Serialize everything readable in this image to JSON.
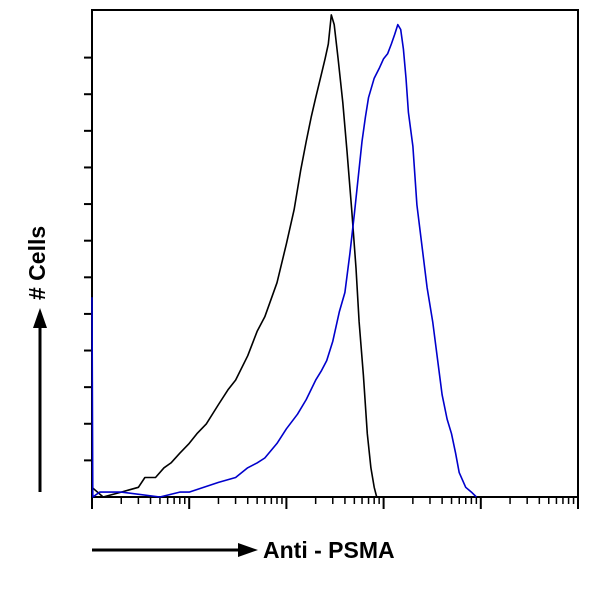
{
  "chart_data": {
    "type": "histogram",
    "xlabel": "Anti - PSMA",
    "ylabel": "# Cells",
    "xscale": "log",
    "xlim": [
      1,
      100000
    ],
    "ylim": [
      0,
      100
    ],
    "grid": false,
    "legend": "none",
    "series": [
      {
        "color": "#000000",
        "points": [
          [
            1.0,
            2
          ],
          [
            1.3,
            0
          ],
          [
            2.0,
            1
          ],
          [
            3.0,
            2
          ],
          [
            3.5,
            4
          ],
          [
            4.5,
            4
          ],
          [
            5.5,
            6
          ],
          [
            6.5,
            7
          ],
          [
            8.0,
            9
          ],
          [
            10,
            11
          ],
          [
            12,
            13
          ],
          [
            15,
            15
          ],
          [
            20,
            19
          ],
          [
            25,
            22
          ],
          [
            30,
            24
          ],
          [
            40,
            29
          ],
          [
            50,
            34
          ],
          [
            60,
            37
          ],
          [
            80,
            44
          ],
          [
            100,
            52
          ],
          [
            120,
            59
          ],
          [
            140,
            67
          ],
          [
            160,
            73
          ],
          [
            180,
            78
          ],
          [
            200,
            82
          ],
          [
            230,
            87
          ],
          [
            250,
            90
          ],
          [
            270,
            93
          ],
          [
            290,
            99
          ],
          [
            310,
            97
          ],
          [
            340,
            90
          ],
          [
            380,
            81
          ],
          [
            420,
            71
          ],
          [
            470,
            59
          ],
          [
            520,
            47
          ],
          [
            560,
            36
          ],
          [
            620,
            25
          ],
          [
            680,
            13
          ],
          [
            740,
            6
          ],
          [
            800,
            2
          ],
          [
            850,
            0
          ]
        ]
      },
      {
        "color": "#0000cc",
        "points": [
          [
            1.0,
            41
          ],
          [
            1.02,
            0
          ],
          [
            1.2,
            1
          ],
          [
            2.0,
            1
          ],
          [
            5,
            0
          ],
          [
            8,
            1
          ],
          [
            10,
            1
          ],
          [
            20,
            3
          ],
          [
            30,
            4
          ],
          [
            40,
            6
          ],
          [
            50,
            7
          ],
          [
            60,
            8
          ],
          [
            80,
            11
          ],
          [
            100,
            14
          ],
          [
            130,
            17
          ],
          [
            160,
            20
          ],
          [
            200,
            24
          ],
          [
            230,
            26
          ],
          [
            260,
            28
          ],
          [
            300,
            32
          ],
          [
            350,
            38
          ],
          [
            400,
            42
          ],
          [
            450,
            50
          ],
          [
            500,
            58
          ],
          [
            550,
            66
          ],
          [
            600,
            73
          ],
          [
            650,
            78
          ],
          [
            700,
            82
          ],
          [
            800,
            86
          ],
          [
            900,
            88
          ],
          [
            1000,
            90
          ],
          [
            1100,
            91
          ],
          [
            1200,
            93
          ],
          [
            1300,
            95
          ],
          [
            1400,
            97
          ],
          [
            1500,
            96
          ],
          [
            1600,
            92
          ],
          [
            1700,
            86
          ],
          [
            1800,
            79
          ],
          [
            2000,
            72
          ],
          [
            2200,
            60
          ],
          [
            2500,
            51
          ],
          [
            2800,
            43
          ],
          [
            3200,
            36
          ],
          [
            3600,
            28
          ],
          [
            4000,
            21
          ],
          [
            4500,
            16
          ],
          [
            5000,
            13
          ],
          [
            5500,
            9
          ],
          [
            6000,
            5
          ],
          [
            7000,
            2
          ],
          [
            8000,
            1
          ],
          [
            9000,
            0
          ]
        ]
      }
    ]
  }
}
